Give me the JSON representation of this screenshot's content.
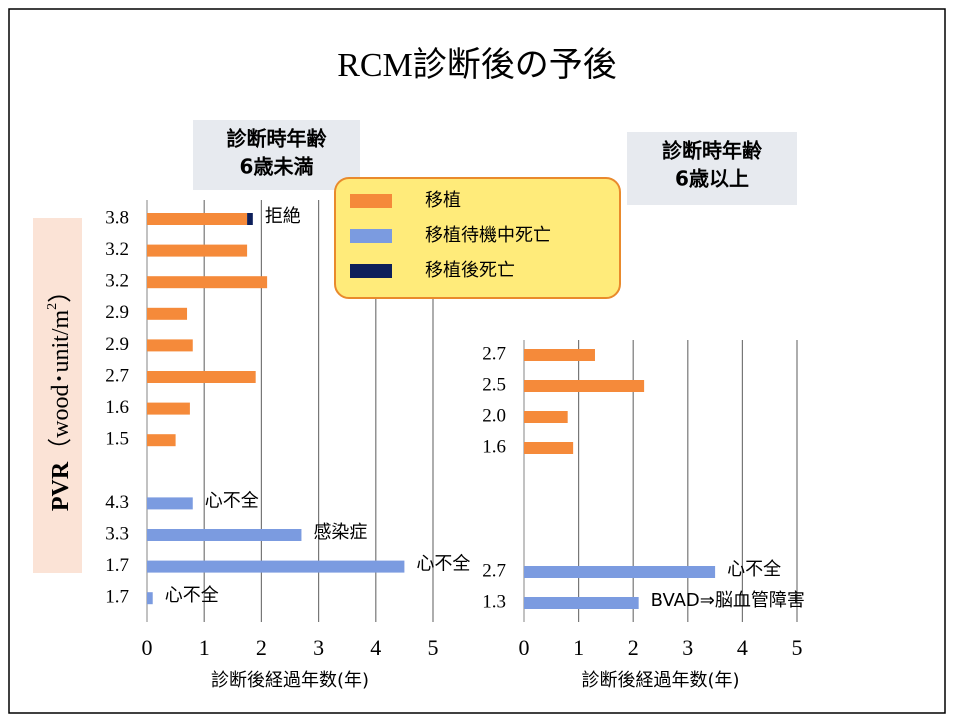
{
  "title": "RCM診断後の予後",
  "ylabel": {
    "main": "PVR",
    "unit": "（wood･unit/m",
    "sup": "2",
    "close": "）"
  },
  "chart_data": [
    {
      "type": "bar",
      "orientation": "horizontal",
      "stacked": true,
      "subtitle_lines": [
        "診断時年齢",
        "6歳未満"
      ],
      "categories": [
        "3.8",
        "3.2",
        "3.2",
        "2.9",
        "2.9",
        "2.7",
        "1.6",
        "1.5",
        null,
        "4.3",
        "3.3",
        "1.7",
        "1.7"
      ],
      "series": [
        {
          "name": "移植",
          "color": "#F58A3A",
          "values": [
            1.75,
            1.75,
            2.1,
            0.7,
            0.8,
            1.9,
            0.75,
            0.5,
            null,
            null,
            null,
            null,
            null
          ]
        },
        {
          "name": "移植待機中死亡",
          "color": "#7B9BE0",
          "values": [
            null,
            null,
            null,
            null,
            null,
            null,
            null,
            null,
            null,
            0.8,
            2.7,
            4.5,
            0.1
          ]
        },
        {
          "name": "移植後死亡",
          "color": "#0D1F5A",
          "values": [
            0.1,
            null,
            null,
            null,
            null,
            null,
            null,
            null,
            null,
            null,
            null,
            null,
            null
          ]
        }
      ],
      "annotations": [
        "拒絶",
        null,
        null,
        null,
        null,
        null,
        null,
        null,
        null,
        "心不全",
        "感染症",
        "心不全",
        "心不全"
      ],
      "xlim": [
        0,
        5
      ],
      "xticks": [
        0,
        1,
        2,
        3,
        4,
        5
      ],
      "grid": true,
      "xlabel": "診断後経過年数(年)"
    },
    {
      "type": "bar",
      "orientation": "horizontal",
      "stacked": true,
      "subtitle_lines": [
        "診断時年齢",
        "6歳以上"
      ],
      "categories": [
        "2.7",
        "2.5",
        "2.0",
        "1.6",
        null,
        null,
        null,
        "2.7",
        "1.3"
      ],
      "series": [
        {
          "color": "#F58A3A",
          "values": [
            1.3,
            2.2,
            0.8,
            0.9,
            null,
            null,
            null,
            null,
            null
          ]
        },
        {
          "color": "#7B9BE0",
          "values": [
            null,
            null,
            null,
            null,
            null,
            null,
            null,
            3.5,
            2.1
          ]
        }
      ],
      "annotations": [
        null,
        null,
        null,
        null,
        null,
        null,
        null,
        "心不全",
        "BVAD⇒脳血管障害"
      ],
      "xlim": [
        0,
        5
      ],
      "xticks": [
        0,
        1,
        2,
        3,
        4,
        5
      ],
      "grid": true,
      "xlabel": "診断後経過年数(年)"
    }
  ]
}
